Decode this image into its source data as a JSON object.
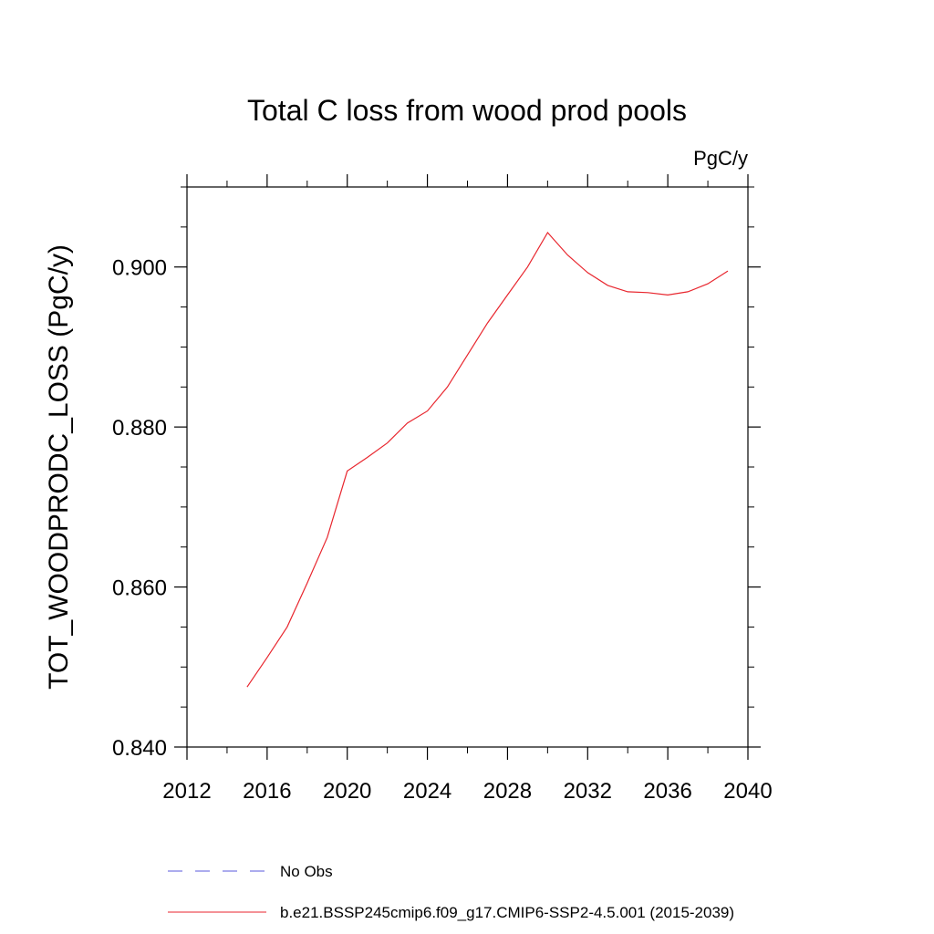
{
  "chart_data": {
    "type": "line",
    "title": "Total C loss from wood prod pools",
    "units_label": "PgC/y",
    "ylabel": "TOT_WOODPRODC_LOSS  (PgC/y)",
    "xlabel": "",
    "xlim": [
      2012,
      2040
    ],
    "ylim": [
      0.84,
      0.91
    ],
    "x_ticks": [
      2012,
      2016,
      2020,
      2024,
      2028,
      2032,
      2036,
      2040
    ],
    "x_tick_labels": [
      "2012",
      "2016",
      "2020",
      "2024",
      "2028",
      "2032",
      "2036",
      "2040"
    ],
    "y_ticks": [
      0.84,
      0.86,
      0.88,
      0.9
    ],
    "y_tick_labels": [
      "0.840",
      "0.860",
      "0.880",
      "0.900"
    ],
    "grid": false,
    "legend_placement": "bottom",
    "series": [
      {
        "name": "b.e21.BSSP245cmip6.f09_g17.CMIP6-SSP2-4.5.001 (2015-2039)",
        "color": "#e8262e",
        "dash": "solid",
        "x": [
          2015,
          2016,
          2017,
          2018,
          2019,
          2020,
          2021,
          2022,
          2023,
          2024,
          2025,
          2026,
          2027,
          2028,
          2029,
          2030,
          2031,
          2032,
          2033,
          2034,
          2035,
          2036,
          2037,
          2038,
          2039
        ],
        "y": [
          0.8475,
          0.8512,
          0.855,
          0.8605,
          0.8662,
          0.8745,
          0.8762,
          0.878,
          0.8805,
          0.882,
          0.885,
          0.889,
          0.893,
          0.8965,
          0.9,
          0.9043,
          0.9015,
          0.8993,
          0.8977,
          0.8969,
          0.8968,
          0.8965,
          0.8969,
          0.8979,
          0.8995
        ]
      }
    ],
    "legend": [
      {
        "label": "No Obs",
        "color": "#5a5adc",
        "dash": "dashed"
      },
      {
        "label": "b.e21.BSSP245cmip6.f09_g17.CMIP6-SSP2-4.5.001 (2015-2039)",
        "color": "#e8262e",
        "dash": "solid"
      }
    ]
  }
}
